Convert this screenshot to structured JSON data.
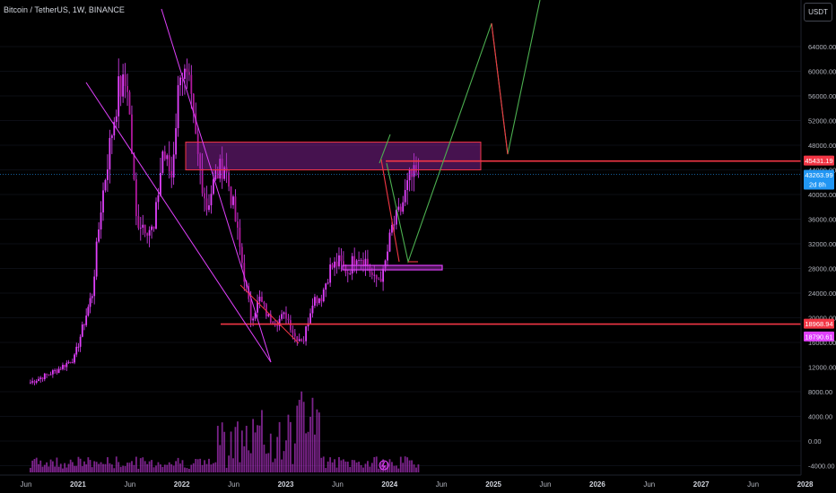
{
  "symbol_title": "Bitcoin / TetherUS, 1W, BINANCE",
  "currency_label": "USDT",
  "price_axis": {
    "ticks": [
      "64000.00",
      "60000.00",
      "56000.00",
      "52000.00",
      "48000.00",
      "44000.00",
      "40000.00",
      "36000.00",
      "32000.00",
      "28000.00",
      "24000.00",
      "20000.00",
      "16000.00",
      "12000.00",
      "8000.00",
      "4000.00",
      "0.00",
      "-4000.00"
    ],
    "tags": [
      {
        "label": "45431.19",
        "price": 45431.19,
        "color": "#f23645"
      },
      {
        "label": "43263.99",
        "price": 43263.99,
        "color": "#2196f3",
        "sub": "2d 8h"
      },
      {
        "label": "18968.94",
        "price": 18968.94,
        "color": "#f23645"
      },
      {
        "label": "18790.61",
        "price": 18790.61,
        "color": "#e040fb"
      }
    ]
  },
  "time_axis": {
    "ticks": [
      {
        "label": "Jun",
        "bold": false
      },
      {
        "label": "2021",
        "bold": true
      },
      {
        "label": "Jun",
        "bold": false
      },
      {
        "label": "2022",
        "bold": true
      },
      {
        "label": "Jun",
        "bold": false
      },
      {
        "label": "2023",
        "bold": true
      },
      {
        "label": "Jun",
        "bold": false
      },
      {
        "label": "2024",
        "bold": true
      },
      {
        "label": "Jun",
        "bold": false
      },
      {
        "label": "2025",
        "bold": true
      },
      {
        "label": "Jun",
        "bold": false
      },
      {
        "label": "2026",
        "bold": true
      },
      {
        "label": "Jun",
        "bold": false
      },
      {
        "label": "2027",
        "bold": true
      },
      {
        "label": "Jun",
        "bold": false
      },
      {
        "label": "2028",
        "bold": true
      }
    ]
  },
  "colors": {
    "candle": "#e040fb",
    "volume": "#e040fb",
    "supply_zone": "#9c27b0",
    "resistance": "#f23645",
    "bull_path": "#4caf50",
    "bear_path": "#f23645",
    "background": "#000000"
  },
  "chart_data": {
    "type": "candlestick",
    "title": "Bitcoin / TetherUS, 1W, BINANCE",
    "interval": "1W",
    "ylim": [
      -4000,
      68000
    ],
    "price_series": [
      [
        "2020-05",
        9500
      ],
      [
        "2020-08",
        11500
      ],
      [
        "2020-10",
        13500
      ],
      [
        "2020-12",
        24000
      ],
      [
        "2021-01",
        38000
      ],
      [
        "2021-02",
        48000
      ],
      [
        "2021-03",
        57000
      ],
      [
        "2021-04",
        58000
      ],
      [
        "2021-05",
        36000
      ],
      [
        "2021-06",
        35000
      ],
      [
        "2021-07",
        34000
      ],
      [
        "2021-08",
        47000
      ],
      [
        "2021-09",
        43000
      ],
      [
        "2021-10",
        61000
      ],
      [
        "2021-11",
        57000
      ],
      [
        "2021-12",
        46000
      ],
      [
        "2022-01",
        38000
      ],
      [
        "2022-02",
        43000
      ],
      [
        "2022-03",
        45000
      ],
      [
        "2022-04",
        38000
      ],
      [
        "2022-05",
        29000
      ],
      [
        "2022-06",
        20000
      ],
      [
        "2022-07",
        23000
      ],
      [
        "2022-08",
        20000
      ],
      [
        "2022-09",
        19500
      ],
      [
        "2022-10",
        20500
      ],
      [
        "2022-11",
        17000
      ],
      [
        "2022-12",
        16500
      ],
      [
        "2023-01",
        23000
      ],
      [
        "2023-02",
        23500
      ],
      [
        "2023-03",
        28000
      ],
      [
        "2023-04",
        29000
      ],
      [
        "2023-05",
        27500
      ],
      [
        "2023-06",
        30500
      ],
      [
        "2023-07",
        29300
      ],
      [
        "2023-08",
        26000
      ],
      [
        "2023-09",
        27000
      ],
      [
        "2023-10",
        34500
      ],
      [
        "2023-11",
        37500
      ],
      [
        "2023-12",
        42500
      ],
      [
        "2024-01",
        43264
      ]
    ],
    "levels": [
      45431.19,
      18968.94
    ],
    "supply_zone": {
      "low": 44000,
      "high": 48500
    },
    "demand_zone": {
      "low": 27800,
      "high": 28500
    },
    "projection_bull": [
      [
        "2024-01",
        49000
      ],
      [
        "2024-12",
        66000
      ]
    ],
    "projection_bear": [
      [
        "2024-01",
        45500
      ],
      [
        "2024-03",
        28500
      ]
    ]
  }
}
